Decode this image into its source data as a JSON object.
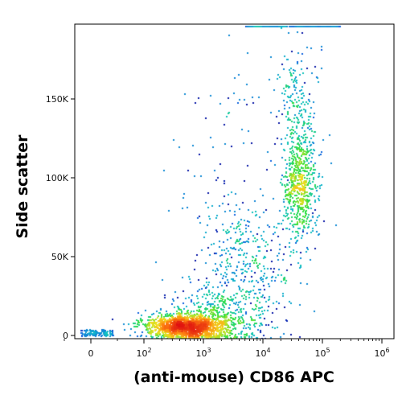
{
  "chart_data": {
    "type": "scatter",
    "style": "flow-cytometry density dot plot",
    "title": "",
    "xlabel": "(anti-mouse) CD86 APC",
    "ylabel": "Side scatter",
    "x_scale": "biexponential (linear near 0, log10 above 100)",
    "xlim": [
      -10,
      1000000
    ],
    "ylim": [
      -3000,
      196000
    ],
    "x_ticks": [
      {
        "value": 0,
        "label": "0"
      },
      {
        "value": 100,
        "label": "10",
        "exp": "2"
      },
      {
        "value": 1000,
        "label": "10",
        "exp": "3"
      },
      {
        "value": 10000,
        "label": "10",
        "exp": "4"
      },
      {
        "value": 100000,
        "label": "10",
        "exp": "5"
      },
      {
        "value": 1000000,
        "label": "10",
        "exp": "6"
      }
    ],
    "y_ticks": [
      {
        "value": 0,
        "label": "0"
      },
      {
        "value": 50000,
        "label": "50K"
      },
      {
        "value": 100000,
        "label": "100K"
      },
      {
        "value": 150000,
        "label": "150K"
      }
    ],
    "density_colormap": [
      "#0a0a9a",
      "#1060e0",
      "#10c0c8",
      "#30e040",
      "#f0e020",
      "#ff8010",
      "#e01010"
    ],
    "populations": [
      {
        "x_log_center": 2.75,
        "x_log_sd": 0.32,
        "y_center": 6000,
        "y_sd": 4000,
        "weight": 0.33
      },
      {
        "x_log_center": 2.5,
        "x_log_sd": 0.3,
        "y_center": 6500,
        "y_sd": 3500,
        "weight": 0.12
      },
      {
        "x_log_center": 3.25,
        "x_log_sd": 0.45,
        "y_center": 12000,
        "y_sd": 11000,
        "weight": 0.14
      },
      {
        "x_log_center": 3.7,
        "x_log_sd": 0.4,
        "y_center": 45000,
        "y_sd": 20000,
        "weight": 0.1
      },
      {
        "x_log_center": 4.6,
        "x_log_sd": 0.14,
        "y_center": 95000,
        "y_sd": 18000,
        "weight": 0.19
      },
      {
        "x_log_center": 4.55,
        "x_log_sd": 0.17,
        "y_center": 140000,
        "y_sd": 22000,
        "weight": 0.06
      },
      {
        "x_log_center": 3.4,
        "x_log_sd": 0.55,
        "y_center": 110000,
        "y_sd": 40000,
        "weight": 0.03
      }
    ],
    "ceiling_y": 195000,
    "ceiling_x_log_range": [
      3.7,
      5.3
    ]
  }
}
